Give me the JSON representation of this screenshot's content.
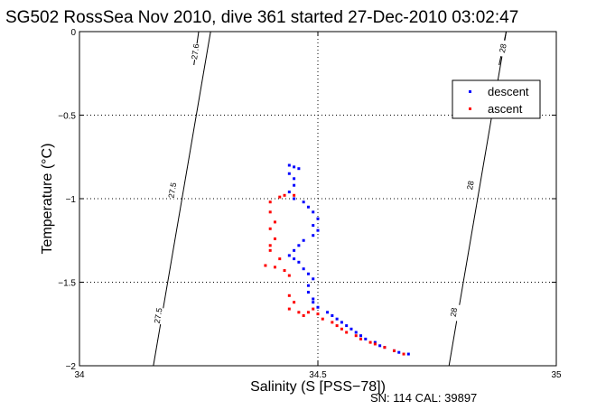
{
  "chart_data": {
    "type": "scatter",
    "title": "SG502 RossSea Nov 2010, dive 361 started 27-Dec-2010 03:02:47",
    "xlabel": "Salinity (S [PSS−78])",
    "ylabel": "Temperature (°C)",
    "footer": "SN: 114  CAL: 39897",
    "xlim": [
      34,
      35
    ],
    "ylim": [
      -2,
      0
    ],
    "xticks": [
      "34",
      "34.5",
      "35"
    ],
    "yticks": [
      "0",
      "−0.5",
      "−1",
      "−1.5",
      "−2"
    ],
    "grid": true,
    "legend_position": "top-right",
    "series": [
      {
        "name": "descent",
        "color": "#0000ff",
        "points": [
          [
            34.44,
            -0.8
          ],
          [
            34.45,
            -0.81
          ],
          [
            34.46,
            -0.82
          ],
          [
            34.44,
            -0.85
          ],
          [
            34.45,
            -0.88
          ],
          [
            34.45,
            -0.92
          ],
          [
            34.44,
            -0.96
          ],
          [
            34.45,
            -1.0
          ],
          [
            34.47,
            -1.02
          ],
          [
            34.48,
            -1.05
          ],
          [
            34.49,
            -1.08
          ],
          [
            34.5,
            -1.12
          ],
          [
            34.49,
            -1.16
          ],
          [
            34.5,
            -1.19
          ],
          [
            34.49,
            -1.22
          ],
          [
            34.47,
            -1.25
          ],
          [
            34.46,
            -1.28
          ],
          [
            34.45,
            -1.31
          ],
          [
            34.44,
            -1.34
          ],
          [
            34.45,
            -1.36
          ],
          [
            34.46,
            -1.38
          ],
          [
            34.47,
            -1.42
          ],
          [
            34.48,
            -1.45
          ],
          [
            34.49,
            -1.48
          ],
          [
            34.48,
            -1.52
          ],
          [
            34.48,
            -1.56
          ],
          [
            34.49,
            -1.6
          ],
          [
            34.49,
            -1.62
          ],
          [
            34.5,
            -1.65
          ],
          [
            34.52,
            -1.68
          ],
          [
            34.53,
            -1.7
          ],
          [
            34.54,
            -1.72
          ],
          [
            34.55,
            -1.74
          ],
          [
            34.56,
            -1.76
          ],
          [
            34.57,
            -1.78
          ],
          [
            34.58,
            -1.8
          ],
          [
            34.59,
            -1.82
          ],
          [
            34.6,
            -1.84
          ],
          [
            34.62,
            -1.86
          ],
          [
            34.63,
            -1.88
          ],
          [
            34.64,
            -1.89
          ],
          [
            34.66,
            -1.91
          ],
          [
            34.67,
            -1.92
          ],
          [
            34.69,
            -1.93
          ]
        ]
      },
      {
        "name": "ascent",
        "color": "#ff0000",
        "points": [
          [
            34.42,
            -0.99
          ],
          [
            34.43,
            -0.98
          ],
          [
            34.45,
            -0.98
          ],
          [
            34.4,
            -1.02
          ],
          [
            34.4,
            -1.08
          ],
          [
            34.41,
            -1.14
          ],
          [
            34.4,
            -1.18
          ],
          [
            34.41,
            -1.24
          ],
          [
            34.4,
            -1.28
          ],
          [
            34.4,
            -1.31
          ],
          [
            34.42,
            -1.36
          ],
          [
            34.39,
            -1.4
          ],
          [
            34.41,
            -1.41
          ],
          [
            34.43,
            -1.43
          ],
          [
            34.44,
            -1.46
          ],
          [
            34.44,
            -1.58
          ],
          [
            34.45,
            -1.62
          ],
          [
            34.44,
            -1.66
          ],
          [
            34.46,
            -1.68
          ],
          [
            34.47,
            -1.7
          ],
          [
            34.48,
            -1.68
          ],
          [
            34.49,
            -1.66
          ],
          [
            34.5,
            -1.69
          ],
          [
            34.51,
            -1.72
          ],
          [
            34.53,
            -1.74
          ],
          [
            34.54,
            -1.76
          ],
          [
            34.55,
            -1.78
          ],
          [
            34.56,
            -1.8
          ],
          [
            34.58,
            -1.82
          ],
          [
            34.59,
            -1.84
          ],
          [
            34.61,
            -1.86
          ],
          [
            34.62,
            -1.87
          ],
          [
            34.64,
            -1.89
          ],
          [
            34.66,
            -1.91
          ],
          [
            34.68,
            -1.93
          ]
        ]
      }
    ],
    "isopycnals": [
      {
        "label": "27.5",
        "from": [
          34.155,
          -2
        ],
        "to": [
          34.275,
          0
        ],
        "label_positions": [
          [
            34.165,
            -1.7
          ],
          [
            34.195,
            -0.95
          ]
        ]
      },
      {
        "label": "28",
        "from": [
          34.775,
          -2
        ],
        "to": [
          34.895,
          0
        ],
        "label_positions": [
          [
            34.785,
            -1.68
          ],
          [
            34.82,
            -0.92
          ]
        ]
      },
      {
        "label": "27.6",
        "from": [
          34.24,
          -0.2
        ],
        "to": [
          34.25,
          0
        ],
        "label_positions": [
          [
            34.243,
            -0.12
          ]
        ]
      },
      {
        "label": "28",
        "from": [
          34.88,
          -0.2
        ],
        "to": [
          34.895,
          0
        ],
        "label_positions": [
          [
            34.888,
            -0.1
          ]
        ]
      }
    ]
  }
}
